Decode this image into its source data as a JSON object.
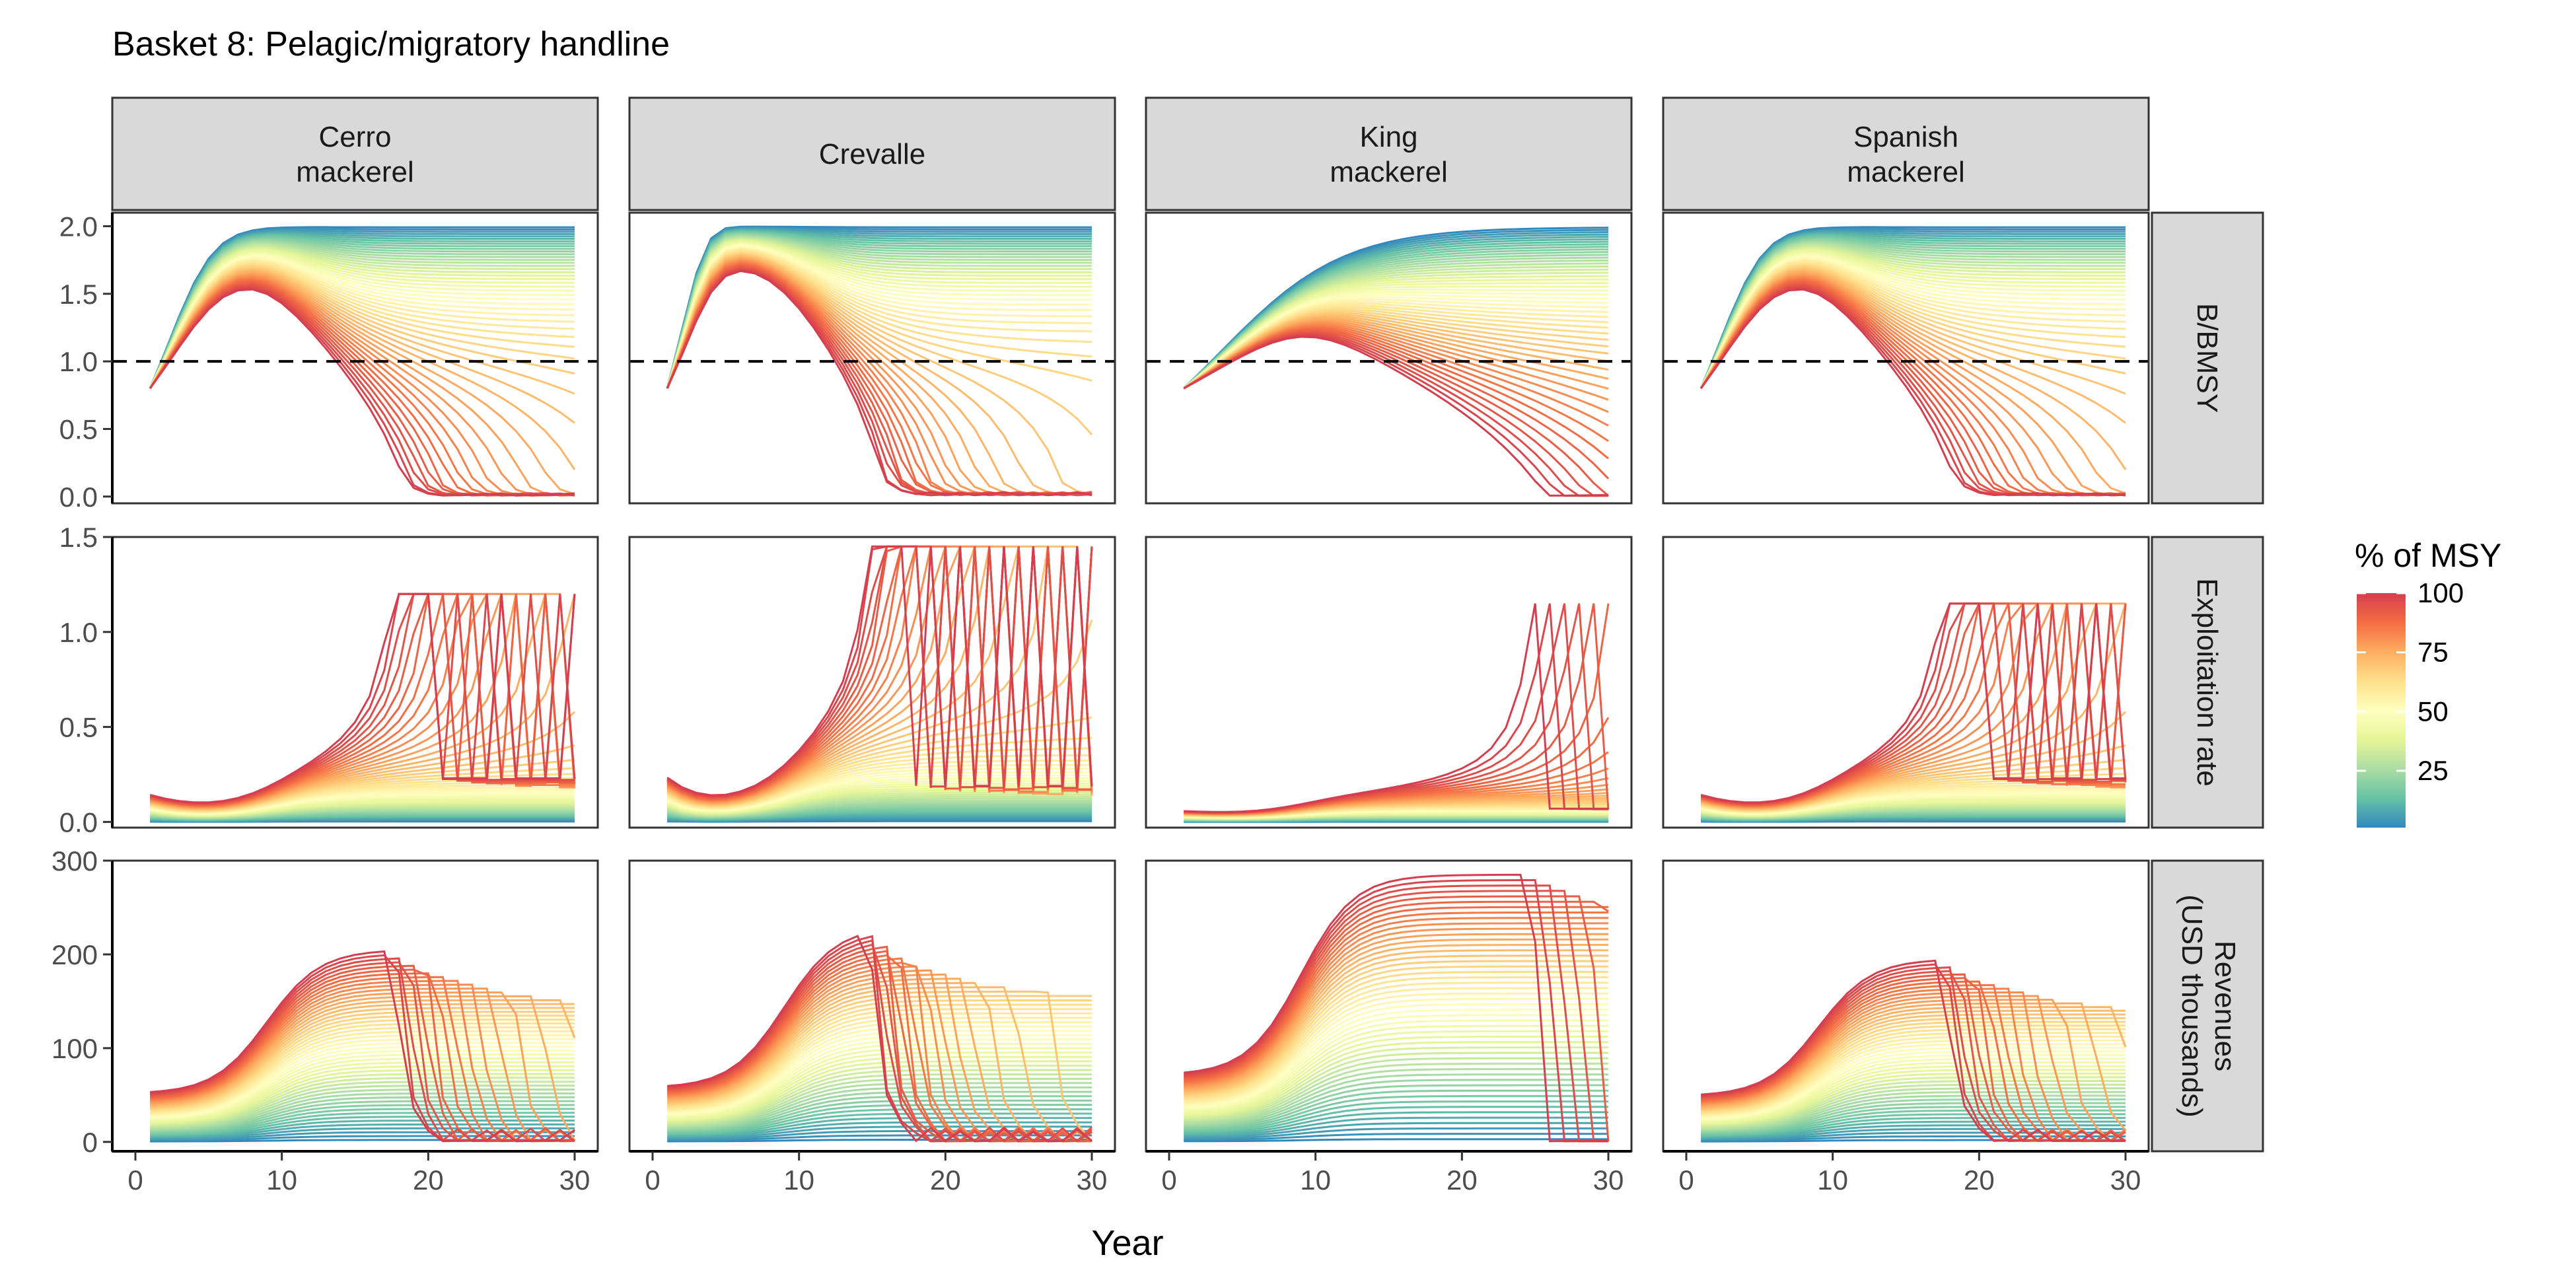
{
  "chart_data": {
    "type": "line",
    "title": "Basket 8: Pelagic/migratory handline",
    "xlabel": "Year",
    "x_ticks": [
      "0",
      "10",
      "20",
      "30"
    ],
    "x_range": [
      1,
      30
    ],
    "columns": [
      {
        "label_line1": "Cerro",
        "label_line2": "mackerel"
      },
      {
        "label_line1": "Crevalle",
        "label_line2": ""
      },
      {
        "label_line1": "King",
        "label_line2": "mackerel"
      },
      {
        "label_line1": "Spanish",
        "label_line2": "mackerel"
      }
    ],
    "rows": [
      {
        "label_line1": "B/BMSY",
        "label_line2": "",
        "ylim": [
          -0.05,
          2.1
        ],
        "y_ticks": [
          {
            "value": 0.0,
            "label": "0.0"
          },
          {
            "value": 0.5,
            "label": "0.5"
          },
          {
            "value": 1.0,
            "label": "1.0"
          },
          {
            "value": 1.5,
            "label": "1.5"
          },
          {
            "value": 2.0,
            "label": "2.0"
          }
        ],
        "reference_line": 1.0
      },
      {
        "label_line1": "Exploitation rate",
        "label_line2": "",
        "ylim": [
          -0.03,
          1.5
        ],
        "y_ticks": [
          {
            "value": 0.0,
            "label": "0.0"
          },
          {
            "value": 0.5,
            "label": "0.5"
          },
          {
            "value": 1.0,
            "label": "1.0"
          },
          {
            "value": 1.5,
            "label": "1.5"
          }
        ]
      },
      {
        "label_line1": "Revenues",
        "label_line2": "(USD thousands)",
        "ylim": [
          -10,
          300
        ],
        "y_ticks": [
          {
            "value": 0,
            "label": "0"
          },
          {
            "value": 100,
            "label": "100"
          },
          {
            "value": 200,
            "label": "200"
          },
          {
            "value": 300,
            "label": "300"
          }
        ]
      }
    ],
    "species_params": [
      {
        "r": 0.55,
        "b0": 0.8,
        "f_max": 1.2,
        "f_tail": 0.22,
        "rev_scale": 205
      },
      {
        "r": 0.9,
        "b0": 0.8,
        "f_max": 1.45,
        "f_tail": 0.18,
        "rev_scale": 230
      },
      {
        "r": 0.22,
        "b0": 0.8,
        "f_max": 1.15,
        "f_tail": 0.06,
        "rev_scale": 285
      },
      {
        "r": 0.55,
        "b0": 0.8,
        "f_max": 1.15,
        "f_tail": 0.22,
        "rev_scale": 195
      }
    ],
    "catch_levels_pct_msy": {
      "min": 1,
      "max": 100,
      "count": 50
    },
    "legend": {
      "title": "% of MSY",
      "ticks": [
        {
          "value": 25,
          "label": "25"
        },
        {
          "value": 50,
          "label": "50"
        },
        {
          "value": 75,
          "label": "75"
        },
        {
          "value": 100,
          "label": "100"
        }
      ],
      "range": [
        1,
        100
      ],
      "colors": [
        "#3288bd",
        "#66c2a5",
        "#abdda4",
        "#e6f598",
        "#ffffbf",
        "#fee08b",
        "#fdae61",
        "#f46d43",
        "#d53e4f"
      ],
      "placement": "right"
    }
  }
}
